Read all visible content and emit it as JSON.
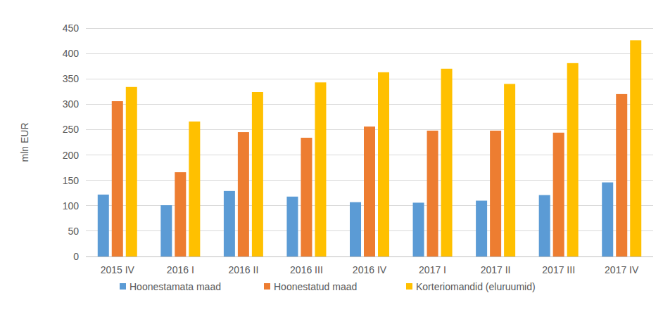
{
  "chart_data": {
    "type": "bar",
    "y_label": "mln EUR",
    "categories": [
      "2015 IV",
      "2016 I",
      "2016 II",
      "2016 III",
      "2016 IV",
      "2017 I",
      "2017 II",
      "2017 III",
      "2017 IV"
    ],
    "series": [
      {
        "name": "Hoonestamata maad",
        "color": "#5b9bd5",
        "values": [
          122,
          101,
          129,
          118,
          107,
          106,
          110,
          121,
          146
        ]
      },
      {
        "name": "Hoonestatud maad",
        "color": "#ed7d31",
        "values": [
          306,
          166,
          245,
          234,
          256,
          248,
          248,
          244,
          320
        ]
      },
      {
        "name": "Korteriomandid (eluruumid)",
        "color": "#ffc000",
        "values": [
          334,
          266,
          324,
          343,
          363,
          370,
          340,
          381,
          426
        ]
      }
    ],
    "ylim": [
      0,
      450
    ],
    "yticks": [
      0,
      50,
      100,
      150,
      200,
      250,
      300,
      350,
      400,
      450
    ],
    "grid": true,
    "legend": "bottom"
  }
}
